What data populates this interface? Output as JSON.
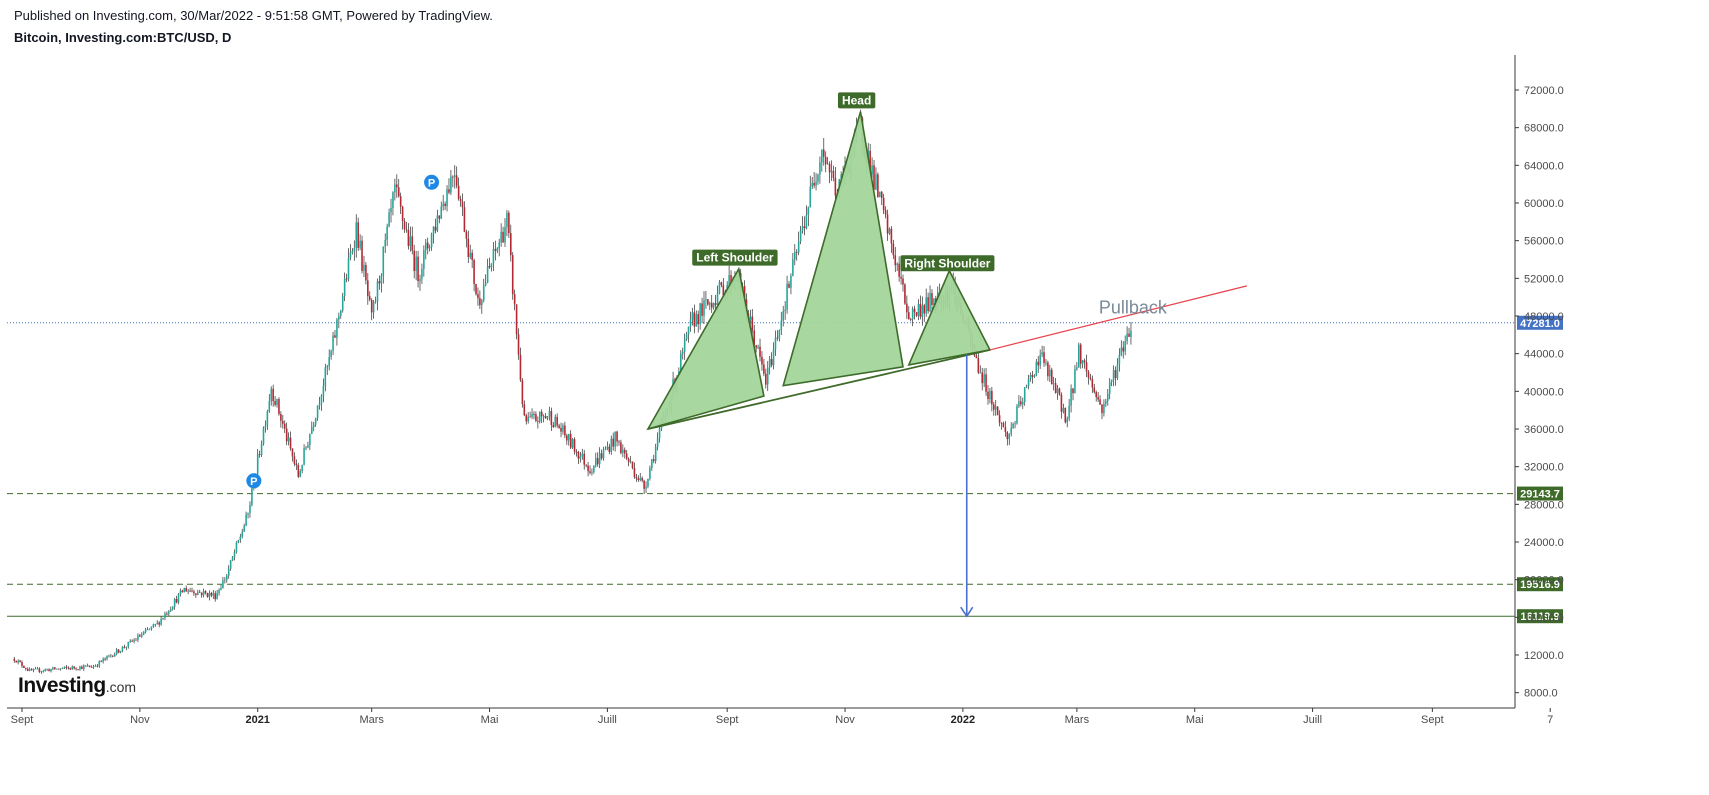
{
  "header": {
    "published": "Published on Investing.com, 30/Mar/2022 - 9:51:58 GMT, Powered by TradingView.",
    "symbol": "Bitcoin, Investing.com:BTC/USD, D"
  },
  "logo": {
    "brand": "Investing",
    "suffix": ".com"
  },
  "colors": {
    "up": "#26a69a",
    "down": "#b22833",
    "pattern_fill": "#a3d69b",
    "pattern_stroke": "#3e6a2a",
    "badge_green": "#3e6a2a",
    "price_line": "#4472c4",
    "trend_red": "#e8404a",
    "arrow_blue": "#4a6fd1",
    "marker_blue": "#1e88e5"
  },
  "chart_data": {
    "type": "candlestick",
    "title": "Bitcoin, Investing.com:BTC/USD, D",
    "ylim": [
      6000,
      75000
    ],
    "y_ticks": [
      8000,
      12000,
      16000,
      20000,
      24000,
      28000,
      32000,
      36000,
      40000,
      44000,
      48000,
      52000,
      56000,
      60000,
      64000,
      68000,
      72000
    ],
    "y_tick_labels": [
      "8000.0",
      "12000.0",
      "16000.0",
      "20000.0",
      "24000.0",
      "28000.0",
      "32000.0",
      "36000.0",
      "40000.0",
      "44000.0",
      "48000.0",
      "52000.0",
      "56000.0",
      "60000.0",
      "64000.0",
      "68000.0",
      "72000.0"
    ],
    "x_ticks": [
      {
        "date": "2020-09-01",
        "label": "Sept",
        "bold": false
      },
      {
        "date": "2020-11-01",
        "label": "Nov",
        "bold": false
      },
      {
        "date": "2021-01-01",
        "label": "2021",
        "bold": true
      },
      {
        "date": "2021-03-01",
        "label": "Mars",
        "bold": false
      },
      {
        "date": "2021-05-01",
        "label": "Mai",
        "bold": false
      },
      {
        "date": "2021-07-01",
        "label": "Juill",
        "bold": false
      },
      {
        "date": "2021-09-01",
        "label": "Sept",
        "bold": false
      },
      {
        "date": "2021-11-01",
        "label": "Nov",
        "bold": false
      },
      {
        "date": "2022-01-01",
        "label": "2022",
        "bold": true
      },
      {
        "date": "2022-03-01",
        "label": "Mars",
        "bold": false
      },
      {
        "date": "2022-05-01",
        "label": "Mai",
        "bold": false
      },
      {
        "date": "2022-07-01",
        "label": "Juill",
        "bold": false
      },
      {
        "date": "2022-09-01",
        "label": "Sept",
        "bold": false
      },
      {
        "date": "2022-11-01",
        "label": "7",
        "bold": false
      }
    ],
    "price_path": [
      [
        "2020-08-28",
        11600
      ],
      [
        "2020-09-05",
        10300
      ],
      [
        "2020-10-08",
        10800
      ],
      [
        "2020-10-25",
        13000
      ],
      [
        "2020-11-10",
        15300
      ],
      [
        "2020-11-24",
        19000
      ],
      [
        "2020-12-10",
        18300
      ],
      [
        "2020-12-16",
        20500
      ],
      [
        "2020-12-27",
        27000
      ],
      [
        "2021-01-08",
        40500
      ],
      [
        "2021-01-22",
        31000
      ],
      [
        "2021-02-08",
        44000
      ],
      [
        "2021-02-21",
        57500
      ],
      [
        "2021-03-01",
        47500
      ],
      [
        "2021-03-13",
        61200
      ],
      [
        "2021-03-25",
        52500
      ],
      [
        "2021-04-13",
        63800
      ],
      [
        "2021-04-25",
        49500
      ],
      [
        "2021-05-10",
        58200
      ],
      [
        "2021-05-19",
        36700
      ],
      [
        "2021-06-01",
        37500
      ],
      [
        "2021-06-22",
        31800
      ],
      [
        "2021-07-05",
        35000
      ],
      [
        "2021-07-20",
        29800
      ],
      [
        "2021-08-14",
        47500
      ],
      [
        "2021-09-06",
        52500
      ],
      [
        "2021-09-21",
        41000
      ],
      [
        "2021-10-20",
        66000
      ],
      [
        "2021-10-28",
        61000
      ],
      [
        "2021-11-09",
        68000
      ],
      [
        "2021-11-27",
        54000
      ],
      [
        "2021-12-04",
        48000
      ],
      [
        "2021-12-27",
        51000
      ],
      [
        "2022-01-10",
        42000
      ],
      [
        "2022-01-24",
        35000
      ],
      [
        "2022-02-10",
        44000
      ],
      [
        "2022-02-24",
        37000
      ],
      [
        "2022-03-02",
        44300
      ],
      [
        "2022-03-14",
        38000
      ],
      [
        "2022-03-29",
        47281
      ]
    ],
    "last_price": 47281.0,
    "last_price_label": "47281.0",
    "levels": [
      {
        "value": 29143.7,
        "label": "29143.7",
        "style": "dashed"
      },
      {
        "value": 19516.9,
        "label": "19516.9",
        "style": "dashed"
      },
      {
        "value": 16119.9,
        "label": "16119.9",
        "style": "solid"
      }
    ],
    "pattern": {
      "left_shoulder": [
        [
          "2021-07-22",
          36000
        ],
        [
          "2021-09-07",
          53000
        ],
        [
          "2021-09-20",
          39500
        ]
      ],
      "head": [
        [
          "2021-09-30",
          40600
        ],
        [
          "2021-11-09",
          69700
        ],
        [
          "2021-12-01",
          42600
        ]
      ],
      "right_shoulder": [
        [
          "2021-12-04",
          42800
        ],
        [
          "2021-12-25",
          52800
        ],
        [
          "2022-01-15",
          44400
        ]
      ],
      "neckline": [
        [
          "2021-07-22",
          36000
        ],
        [
          "2022-01-15",
          44400
        ]
      ]
    },
    "trendline": [
      [
        "2022-01-15",
        44400
      ],
      [
        "2022-05-28",
        51200
      ]
    ],
    "projection_arrow": {
      "date": "2022-01-03",
      "from": 43900,
      "to": 16119.9
    },
    "pivot_markers": [
      {
        "date": "2020-12-30",
        "value": 30500,
        "label": "P"
      },
      {
        "date": "2021-04-01",
        "value": 62200,
        "label": "P"
      }
    ],
    "annotations": [
      {
        "text": "Left Shoulder",
        "date": "2021-09-05",
        "value": 54200,
        "style": "badge"
      },
      {
        "text": "Head",
        "date": "2021-11-07",
        "value": 70900,
        "style": "badge"
      },
      {
        "text": "Right Shoulder",
        "date": "2021-12-24",
        "value": 53600,
        "style": "badge"
      },
      {
        "text": "Pullback",
        "date": "2022-03-30",
        "value": 48900,
        "style": "text"
      }
    ]
  }
}
